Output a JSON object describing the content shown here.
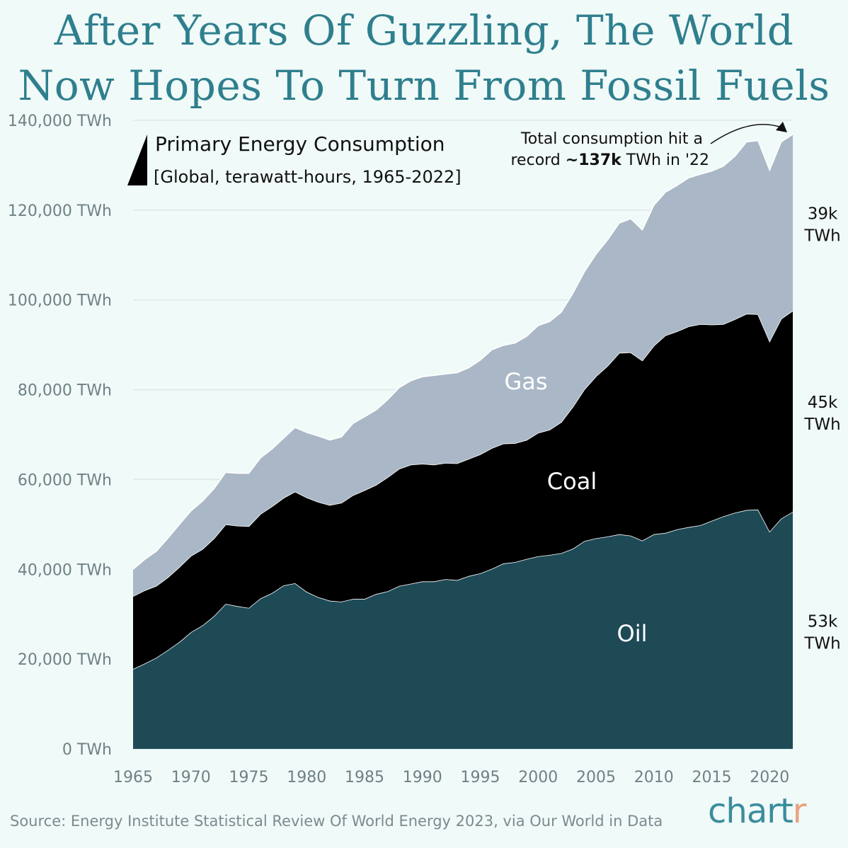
{
  "title": [
    "After Years Of Guzzling, The World",
    "Now Hopes To Turn From Fossil Fuels"
  ],
  "source": "Source: Energy Institute Statistical Review Of World Energy 2023, via Our World in Data",
  "logo": {
    "main": "chart",
    "accent": "r"
  },
  "chart_data": {
    "type": "area",
    "stacked": true,
    "title": "Primary Energy Consumption",
    "subtitle": "[Global, terawatt-hours, 1965-2022]",
    "x": [
      1965,
      1966,
      1967,
      1968,
      1969,
      1970,
      1971,
      1972,
      1973,
      1974,
      1975,
      1976,
      1977,
      1978,
      1979,
      1980,
      1981,
      1982,
      1983,
      1984,
      1985,
      1986,
      1987,
      1988,
      1989,
      1990,
      1991,
      1992,
      1993,
      1994,
      1995,
      1996,
      1997,
      1998,
      1999,
      2000,
      2001,
      2002,
      2003,
      2004,
      2005,
      2006,
      2007,
      2008,
      2009,
      2010,
      2011,
      2012,
      2013,
      2014,
      2015,
      2016,
      2017,
      2018,
      2019,
      2020,
      2021,
      2022
    ],
    "xlim": [
      1965,
      2022
    ],
    "ylim": [
      0,
      140000
    ],
    "x_ticks": [
      "1965",
      "1970",
      "1975",
      "1980",
      "1985",
      "1990",
      "1995",
      "2000",
      "2005",
      "2010",
      "2015",
      "2020"
    ],
    "y_ticks": [
      "0 TWh",
      "20,000 TWh",
      "40,000 TWh",
      "60,000 TWh",
      "80,000 TWh",
      "100,000 TWh",
      "120,000 TWh",
      "140,000 TWh"
    ],
    "grid": true,
    "series": [
      {
        "name": "Oil",
        "color": "#1e4a56",
        "end_label": [
          "53k",
          "TWh"
        ],
        "values": [
          17800,
          19000,
          20300,
          22000,
          23800,
          26000,
          27500,
          29600,
          32300,
          31800,
          31400,
          33500,
          34700,
          36400,
          36900,
          35000,
          33800,
          33000,
          32800,
          33400,
          33400,
          34500,
          35100,
          36300,
          36800,
          37300,
          37300,
          37800,
          37600,
          38500,
          39100,
          40100,
          41300,
          41600,
          42300,
          42900,
          43200,
          43600,
          44600,
          46300,
          46900,
          47300,
          47800,
          47500,
          46400,
          47800,
          48100,
          48900,
          49400,
          49800,
          50800,
          51800,
          52600,
          53200,
          53300,
          48400,
          51300,
          52800
        ]
      },
      {
        "name": "Coal",
        "color": "#000000",
        "end_label": [
          "45k",
          "TWh"
        ],
        "values": [
          16200,
          16300,
          16000,
          16200,
          16700,
          17000,
          17000,
          17300,
          17700,
          17900,
          18200,
          18800,
          19300,
          19500,
          20400,
          21000,
          21200,
          21300,
          22000,
          23100,
          24200,
          24300,
          25400,
          26100,
          26500,
          26200,
          26000,
          25900,
          26000,
          26100,
          26500,
          26900,
          26700,
          26500,
          26500,
          27500,
          27900,
          29200,
          31600,
          33800,
          36100,
          38000,
          40400,
          40800,
          40100,
          42000,
          44000,
          44100,
          44700,
          44800,
          43700,
          42800,
          43100,
          43700,
          43500,
          42400,
          44500,
          44800
        ]
      },
      {
        "name": "Gas",
        "color": "#aab7c6",
        "end_label": [
          "39k",
          "TWh"
        ],
        "values": [
          6000,
          6900,
          7700,
          8700,
          9500,
          10000,
          10700,
          11100,
          11600,
          11700,
          11800,
          12500,
          12800,
          13300,
          14300,
          14500,
          14700,
          14500,
          14700,
          16000,
          16400,
          16700,
          17300,
          18100,
          18700,
          19400,
          19900,
          19800,
          20200,
          20300,
          21000,
          21900,
          21900,
          22300,
          23100,
          23900,
          24100,
          24500,
          25300,
          26200,
          27200,
          28100,
          28900,
          29800,
          29100,
          31300,
          31900,
          32500,
          33100,
          33400,
          34200,
          35200,
          36300,
          38300,
          38700,
          38100,
          39400,
          39300
        ]
      }
    ],
    "annotation": {
      "line1": "Total consumption hit a",
      "line2_pre": "record ",
      "line2_bold": "~137k",
      "line2_post": " TWh in '22"
    }
  }
}
